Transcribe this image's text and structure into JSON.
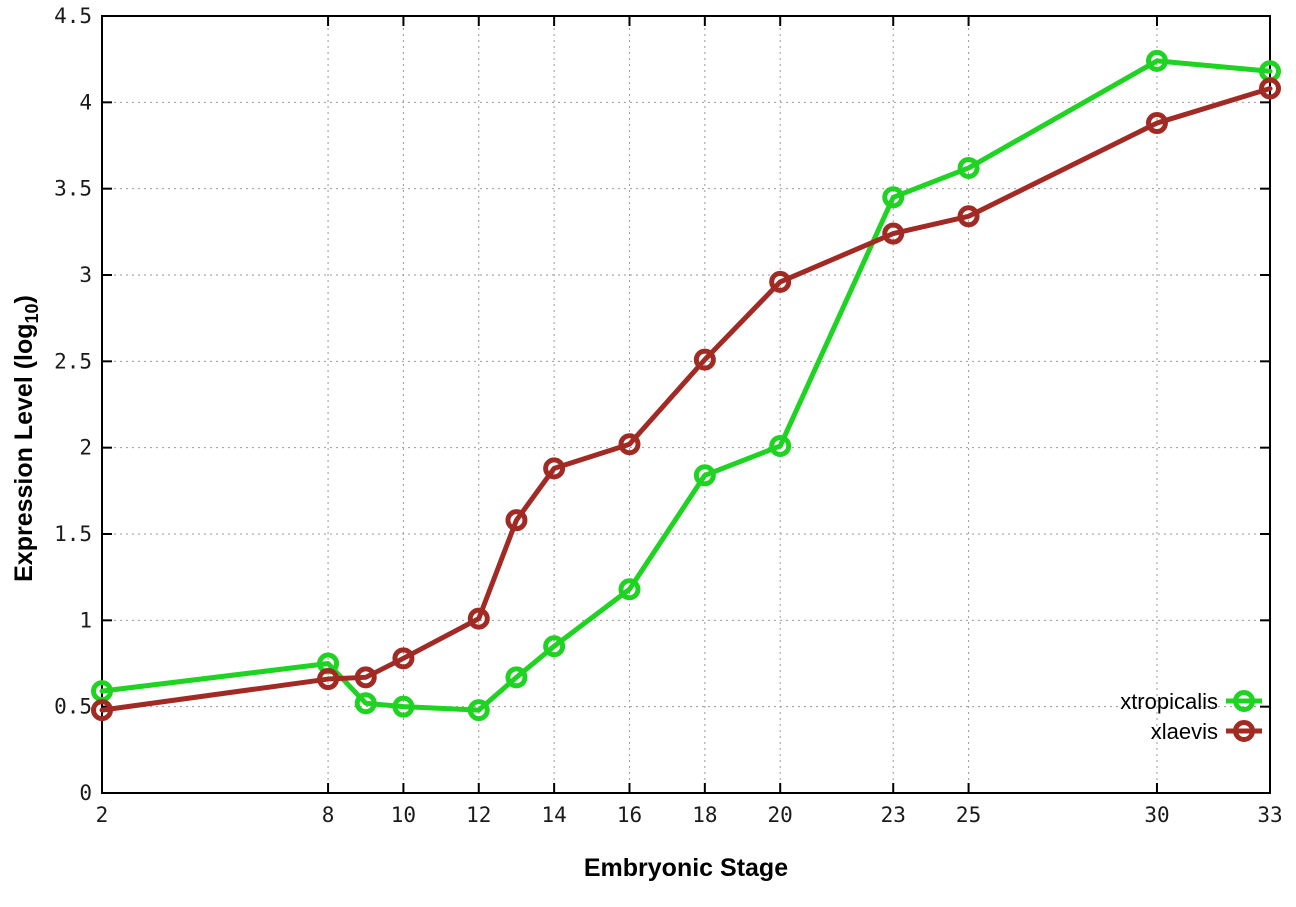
{
  "chart_data": {
    "type": "line",
    "title": "",
    "xlabel": "Embryonic Stage",
    "ylabel": "Expression Level (log10)",
    "ylabel_subscript": "10",
    "x": [
      2,
      8,
      9,
      10,
      12,
      13,
      14,
      16,
      18,
      20,
      23,
      25,
      30,
      33
    ],
    "series": [
      {
        "name": "xtropicalis",
        "color": "#1fd322",
        "values": [
          0.59,
          0.75,
          0.52,
          0.5,
          0.48,
          0.67,
          0.85,
          1.18,
          1.84,
          2.01,
          3.45,
          3.62,
          4.24,
          4.18
        ]
      },
      {
        "name": "xlaevis",
        "color": "#a12b24",
        "values": [
          0.48,
          0.66,
          0.67,
          0.78,
          1.01,
          1.58,
          1.88,
          2.02,
          2.51,
          2.96,
          3.24,
          3.34,
          3.88,
          4.08
        ]
      }
    ],
    "xlim": [
      2,
      33
    ],
    "ylim": [
      0,
      4.5
    ],
    "x_ticks": [
      2,
      8,
      10,
      12,
      14,
      16,
      18,
      20,
      23,
      25,
      30,
      33
    ],
    "y_ticks": [
      0,
      0.5,
      1,
      1.5,
      2,
      2.5,
      3,
      3.5,
      4,
      4.5
    ],
    "grid": true,
    "legend_position": "inside-bottom-right",
    "marker": "open-circle",
    "colors": {
      "background": "#ffffff",
      "axis": "#000000",
      "grid": "#9a9a9a",
      "tick_text": "#1a1a1a"
    }
  }
}
